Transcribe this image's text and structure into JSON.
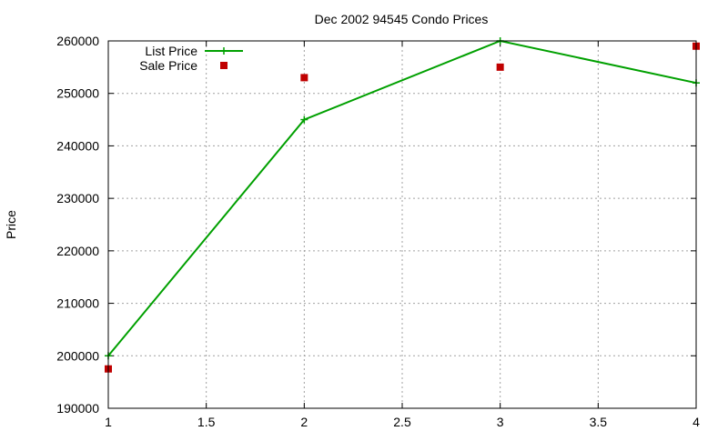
{
  "chart_data": {
    "type": "line",
    "title": "Dec 2002 94545 Condo Prices",
    "xlabel": "",
    "ylabel": "Price",
    "xlim": [
      1,
      4
    ],
    "ylim": [
      190000,
      260000
    ],
    "xticks": [
      "1",
      "1.5",
      "2",
      "2.5",
      "3",
      "3.5",
      "4"
    ],
    "yticks": [
      "190000",
      "200000",
      "210000",
      "220000",
      "230000",
      "240000",
      "250000",
      "260000"
    ],
    "grid": true,
    "legend_position": "top-left",
    "series": [
      {
        "name": "List Price",
        "style": "linespoints",
        "marker": "plus",
        "color": "#00a000",
        "x": [
          1,
          2,
          3,
          4
        ],
        "y": [
          200000,
          245000,
          260000,
          252000
        ]
      },
      {
        "name": "Sale Price",
        "style": "points",
        "marker": "square",
        "color": "#c00000",
        "x": [
          1,
          2,
          3,
          4
        ],
        "y": [
          197500,
          253000,
          255000,
          259000
        ]
      }
    ]
  }
}
